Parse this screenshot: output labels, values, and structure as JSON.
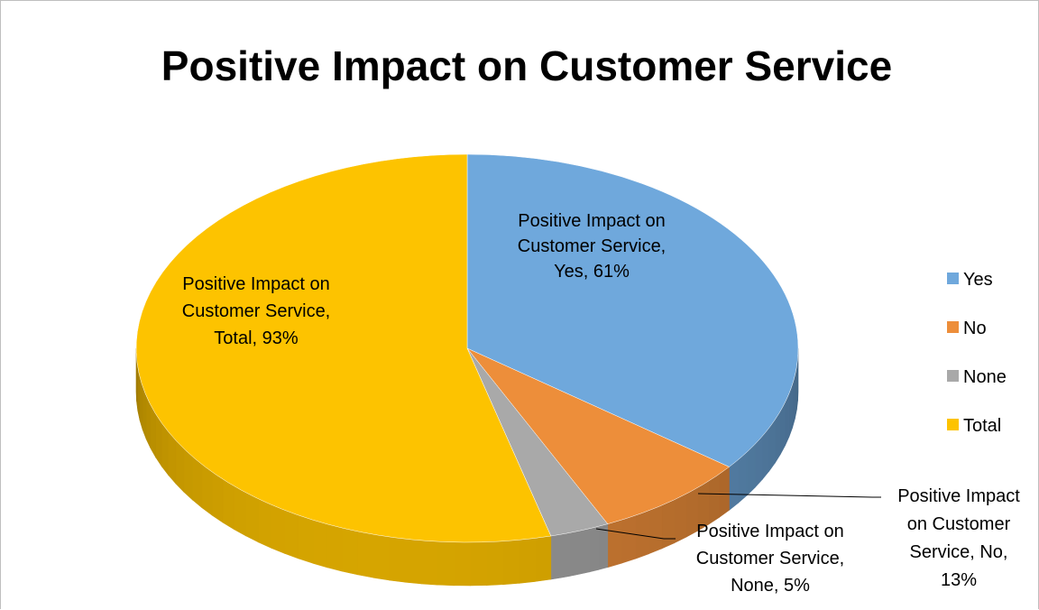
{
  "chart_data": {
    "type": "pie",
    "title": "Positive Impact on Customer Service",
    "series_name": "Positive Impact on Customer Service",
    "categories": [
      "Yes",
      "No",
      "None",
      "Total"
    ],
    "values": [
      61,
      13,
      5,
      93
    ],
    "value_labels": [
      "61%",
      "13%",
      "5%",
      "93%"
    ],
    "colors": [
      "#6fa8dc",
      "#ed8e3a",
      "#a9a9a9",
      "#fdc300"
    ],
    "data_labels": [
      [
        "Positive Impact on",
        "Customer Service,",
        "Yes, 61%"
      ],
      [
        "Positive Impact",
        "on Customer",
        "Service, No,",
        "13%"
      ],
      [
        "Positive Impact on",
        "Customer Service,",
        "None, 5%"
      ],
      [
        "Positive Impact on",
        "Customer Service,",
        "Total, 93%"
      ]
    ],
    "legend": {
      "position": "right",
      "entries": [
        "Yes",
        "No",
        "None",
        "Total"
      ]
    },
    "style": "3d-pie"
  }
}
